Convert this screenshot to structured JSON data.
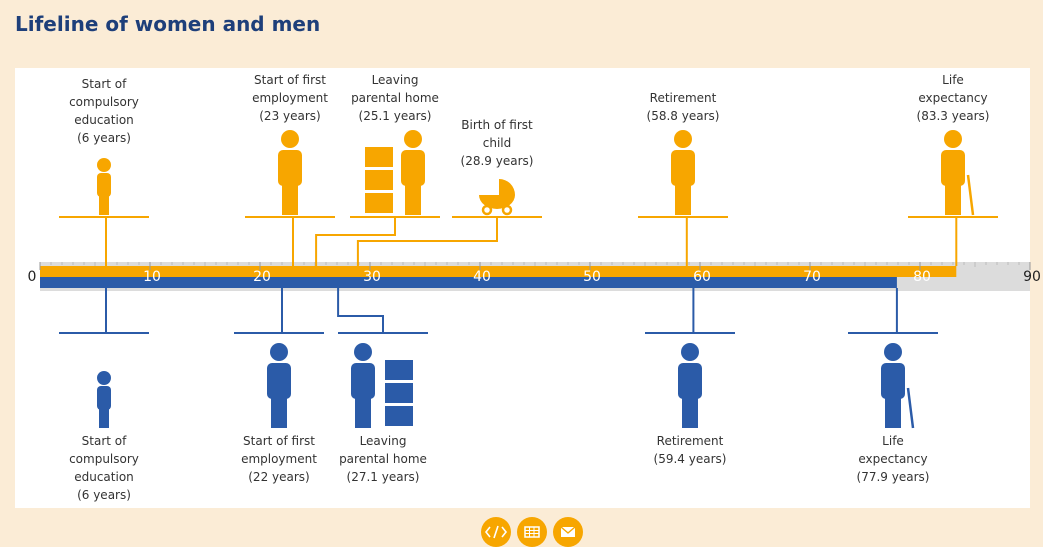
{
  "chart_data": {
    "type": "timeline",
    "title": "Lifeline of women and men",
    "xlim": [
      0,
      90
    ],
    "xticks": [
      0,
      10,
      20,
      30,
      40,
      50,
      60,
      70,
      80,
      90
    ],
    "series": [
      {
        "color": "#f7a600",
        "labels": [
          "Start of compulsory education",
          "Start of first employment",
          "Leaving parental home",
          "Birth of first child",
          "Retirement",
          "Life expectancy"
        ],
        "values": [
          6,
          23,
          25.1,
          28.9,
          58.8,
          83.3
        ],
        "value_labels": [
          "(6 years)",
          "(23 years)",
          "(25.1 years)",
          "(28.9 years)",
          "(58.8 years)",
          "(83.3 years)"
        ]
      },
      {
        "color": "#2b5ba8",
        "labels": [
          "Start of compulsory education",
          "Start of first employment",
          "Leaving parental home",
          "Retirement",
          "Life expectancy"
        ],
        "values": [
          6,
          22,
          27.1,
          59.4,
          77.9
        ],
        "value_labels": [
          "(6 years)",
          "(22 years)",
          "(27.1 years)",
          "(59.4 years)",
          "(77.9 years)"
        ]
      }
    ]
  }
}
